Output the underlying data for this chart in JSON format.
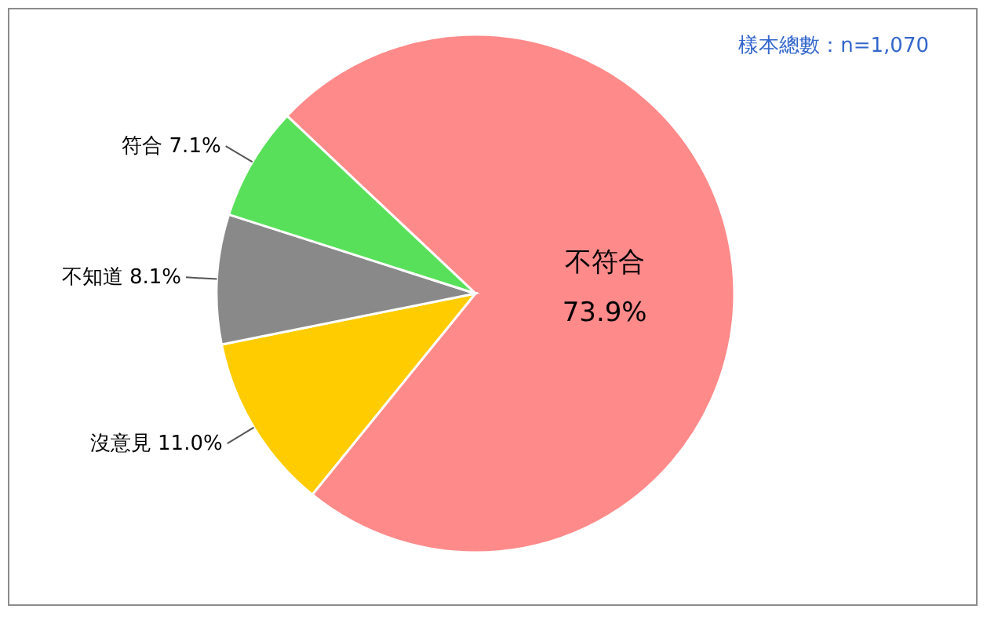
{
  "chart_data": {
    "type": "pie",
    "categories": [
      "不符合",
      "沒意見",
      "不知道",
      "符合"
    ],
    "values": [
      73.9,
      11.0,
      8.1,
      7.1
    ],
    "value_labels": [
      "73.9%",
      "11.0%",
      "8.1%",
      "7.1%"
    ],
    "colors": [
      "#ff8a8a",
      "#ffcc00",
      "#898989",
      "#59e05a"
    ],
    "annotations": [
      "樣本總數：n=1,070"
    ]
  }
}
